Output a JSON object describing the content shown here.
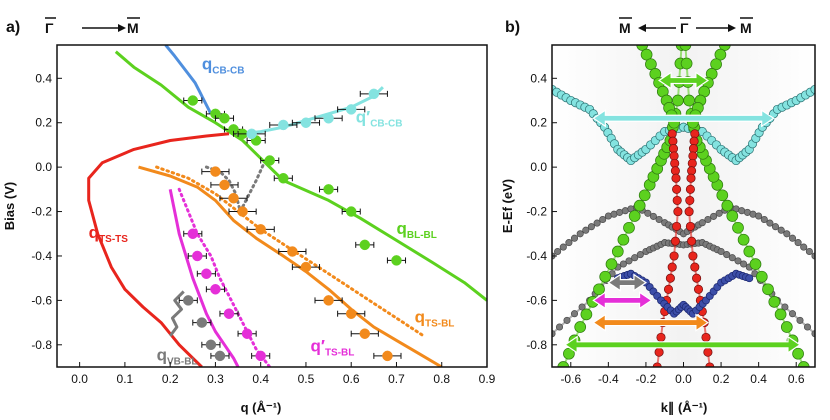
{
  "colors": {
    "green": "#5cd11f",
    "red": "#e8251d",
    "orange": "#f28a1c",
    "magenta": "#e52fd8",
    "blue": "#4f8fde",
    "cyan": "#84e3e0",
    "gray": "#7a7a7a",
    "navy": "#3c4ea8",
    "dkred": "#9e2a2a"
  },
  "chart_data": [
    {
      "panel_label": "a)",
      "type": "scatter",
      "header": {
        "from": "Γ",
        "to": "M"
      },
      "xlabel": "q (Å⁻¹)",
      "ylabel": "Bias (V)",
      "xlim": [
        -0.05,
        0.9
      ],
      "ylim": [
        -0.9,
        0.55
      ],
      "xticks": [
        "0.0",
        "0.1",
        "0.2",
        "0.3",
        "0.4",
        "0.5",
        "0.6",
        "0.7",
        "0.8",
        "0.9"
      ],
      "yticks": [
        "0.4",
        "0.2",
        "0.0",
        "-0.2",
        "-0.4",
        "-0.6",
        "-0.8"
      ],
      "curves": [
        {
          "name": "q_CB-CB",
          "label": "q",
          "sub": "CB-CB",
          "color": "blue",
          "label_x": 0.27,
          "label_y": 0.44,
          "x": [
            0.19,
            0.21,
            0.225,
            0.24,
            0.255,
            0.265,
            0.275,
            0.29
          ],
          "y": [
            0.55,
            0.5,
            0.46,
            0.42,
            0.38,
            0.34,
            0.3,
            0.24
          ]
        },
        {
          "name": "q'_CB-CB",
          "label": "q′",
          "sub": "CB-CB",
          "color": "cyan",
          "label_x": 0.61,
          "label_y": 0.2,
          "x": [
            0.36,
            0.4,
            0.45,
            0.5,
            0.55,
            0.6,
            0.65,
            0.67
          ],
          "y": [
            0.15,
            0.16,
            0.18,
            0.21,
            0.24,
            0.27,
            0.32,
            0.36
          ]
        },
        {
          "name": "q_BL-BL",
          "label": "q",
          "sub": "BL-BL",
          "color": "green",
          "label_x": 0.7,
          "label_y": -0.3,
          "x": [
            0.08,
            0.12,
            0.18,
            0.24,
            0.3,
            0.36,
            0.45,
            0.55,
            0.62,
            0.7,
            0.78,
            0.85,
            0.9
          ],
          "y": [
            0.52,
            0.45,
            0.37,
            0.27,
            0.2,
            0.12,
            -0.06,
            -0.15,
            -0.23,
            -0.33,
            -0.43,
            -0.52,
            -0.6
          ]
        },
        {
          "name": "q_TS-TS",
          "label": "q",
          "sub": "TS-TS",
          "color": "red",
          "label_x": 0.02,
          "label_y": -0.32,
          "x": [
            0.33,
            0.28,
            0.2,
            0.12,
            0.05,
            0.02,
            0.02,
            0.04,
            0.07,
            0.1,
            0.14,
            0.18,
            0.22,
            0.27
          ],
          "y": [
            0.15,
            0.14,
            0.12,
            0.08,
            0.02,
            -0.05,
            -0.15,
            -0.3,
            -0.45,
            -0.55,
            -0.63,
            -0.7,
            -0.8,
            -0.9
          ]
        },
        {
          "name": "q_TS-BL",
          "label": "q",
          "sub": "TS-BL",
          "color": "orange",
          "label_x": 0.74,
          "label_y": -0.7,
          "x": [
            0.13,
            0.2,
            0.26,
            0.3,
            0.34,
            0.39,
            0.45,
            0.5,
            0.55,
            0.6,
            0.65,
            0.7,
            0.75,
            0.8
          ],
          "y": [
            0.0,
            -0.04,
            -0.09,
            -0.15,
            -0.24,
            -0.32,
            -0.4,
            -0.47,
            -0.55,
            -0.64,
            -0.72,
            -0.78,
            -0.84,
            -0.9
          ]
        },
        {
          "name": "q'_TS-BL",
          "label": "q′",
          "sub": "TS-BL",
          "color": "magenta",
          "label_x": 0.51,
          "label_y": -0.83,
          "x": [
            0.2,
            0.21,
            0.22,
            0.235,
            0.25,
            0.265,
            0.28,
            0.3,
            0.32,
            0.34,
            0.35
          ],
          "y": [
            -0.1,
            -0.2,
            -0.3,
            -0.4,
            -0.5,
            -0.58,
            -0.66,
            -0.74,
            -0.8,
            -0.86,
            -0.9
          ]
        },
        {
          "name": "q_VB-BL",
          "label": "q",
          "sub": "VB-BL",
          "color": "gray",
          "label_x": 0.17,
          "label_y": -0.87,
          "x": [
            0.23,
            0.21,
            0.225,
            0.205,
            0.215,
            0.2
          ],
          "y": [
            -0.56,
            -0.6,
            -0.64,
            -0.68,
            -0.72,
            -0.76
          ]
        }
      ],
      "dotted_curves": [
        {
          "color": "orange",
          "x": [
            0.17,
            0.24,
            0.3,
            0.35,
            0.4,
            0.46,
            0.52,
            0.58,
            0.64,
            0.7,
            0.76
          ],
          "y": [
            0.0,
            -0.05,
            -0.12,
            -0.2,
            -0.28,
            -0.36,
            -0.44,
            -0.52,
            -0.6,
            -0.68,
            -0.76
          ]
        },
        {
          "color": "magenta",
          "x": [
            0.22,
            0.24,
            0.26,
            0.29,
            0.31,
            0.33,
            0.35,
            0.37,
            0.39,
            0.42
          ],
          "y": [
            -0.1,
            -0.2,
            -0.3,
            -0.4,
            -0.5,
            -0.58,
            -0.66,
            -0.74,
            -0.82,
            -0.9
          ]
        },
        {
          "color": "gray",
          "x": [
            0.28,
            0.31,
            0.33,
            0.345,
            0.355,
            0.37,
            0.39,
            0.41
          ],
          "y": [
            0.0,
            -0.02,
            -0.06,
            -0.12,
            -0.2,
            -0.14,
            -0.06,
            0.03
          ]
        }
      ],
      "points": [
        {
          "color": "green",
          "x": 0.25,
          "y": 0.3,
          "xerr": 0.02,
          "yerr": 0.02
        },
        {
          "color": "green",
          "x": 0.3,
          "y": 0.24,
          "xerr": 0.02,
          "yerr": 0.02
        },
        {
          "color": "green",
          "x": 0.32,
          "y": 0.22,
          "xerr": 0.02,
          "yerr": 0.02
        },
        {
          "color": "green",
          "x": 0.34,
          "y": 0.17,
          "xerr": 0.02,
          "yerr": 0.02
        },
        {
          "color": "green",
          "x": 0.36,
          "y": 0.15,
          "xerr": 0.02,
          "yerr": 0.02
        },
        {
          "color": "green",
          "x": 0.39,
          "y": 0.12,
          "xerr": 0.02,
          "yerr": 0.02
        },
        {
          "color": "green",
          "x": 0.42,
          "y": 0.03,
          "xerr": 0.02,
          "yerr": 0.02
        },
        {
          "color": "green",
          "x": 0.45,
          "y": -0.05,
          "xerr": 0.02,
          "yerr": 0.02
        },
        {
          "color": "green",
          "x": 0.55,
          "y": -0.1,
          "xerr": 0.02,
          "yerr": 0.02
        },
        {
          "color": "green",
          "x": 0.6,
          "y": -0.2,
          "xerr": 0.02,
          "yerr": 0.02
        },
        {
          "color": "green",
          "x": 0.63,
          "y": -0.35,
          "xerr": 0.02,
          "yerr": 0.02
        },
        {
          "color": "green",
          "x": 0.7,
          "y": -0.42,
          "xerr": 0.02,
          "yerr": 0.02
        },
        {
          "color": "cyan",
          "x": 0.38,
          "y": 0.15,
          "xerr": 0.03,
          "yerr": 0.02
        },
        {
          "color": "cyan",
          "x": 0.45,
          "y": 0.19,
          "xerr": 0.03,
          "yerr": 0.02
        },
        {
          "color": "cyan",
          "x": 0.5,
          "y": 0.2,
          "xerr": 0.03,
          "yerr": 0.02
        },
        {
          "color": "cyan",
          "x": 0.55,
          "y": 0.22,
          "xerr": 0.03,
          "yerr": 0.02
        },
        {
          "color": "cyan",
          "x": 0.6,
          "y": 0.26,
          "xerr": 0.03,
          "yerr": 0.02
        },
        {
          "color": "cyan",
          "x": 0.65,
          "y": 0.33,
          "xerr": 0.03,
          "yerr": 0.02
        },
        {
          "color": "orange",
          "x": 0.3,
          "y": -0.02,
          "xerr": 0.03,
          "yerr": 0.02
        },
        {
          "color": "orange",
          "x": 0.32,
          "y": -0.08,
          "xerr": 0.03,
          "yerr": 0.02
        },
        {
          "color": "orange",
          "x": 0.34,
          "y": -0.14,
          "xerr": 0.03,
          "yerr": 0.02
        },
        {
          "color": "orange",
          "x": 0.36,
          "y": -0.2,
          "xerr": 0.03,
          "yerr": 0.02
        },
        {
          "color": "orange",
          "x": 0.4,
          "y": -0.28,
          "xerr": 0.03,
          "yerr": 0.02
        },
        {
          "color": "orange",
          "x": 0.47,
          "y": -0.38,
          "xerr": 0.03,
          "yerr": 0.02
        },
        {
          "color": "orange",
          "x": 0.5,
          "y": -0.45,
          "xerr": 0.03,
          "yerr": 0.02
        },
        {
          "color": "orange",
          "x": 0.55,
          "y": -0.6,
          "xerr": 0.03,
          "yerr": 0.02
        },
        {
          "color": "orange",
          "x": 0.6,
          "y": -0.66,
          "xerr": 0.03,
          "yerr": 0.02
        },
        {
          "color": "orange",
          "x": 0.63,
          "y": -0.75,
          "xerr": 0.03,
          "yerr": 0.02
        },
        {
          "color": "orange",
          "x": 0.68,
          "y": -0.85,
          "xerr": 0.03,
          "yerr": 0.02
        },
        {
          "color": "magenta",
          "x": 0.25,
          "y": -0.3,
          "xerr": 0.02,
          "yerr": 0.02
        },
        {
          "color": "magenta",
          "x": 0.26,
          "y": -0.4,
          "xerr": 0.02,
          "yerr": 0.02
        },
        {
          "color": "magenta",
          "x": 0.28,
          "y": -0.48,
          "xerr": 0.02,
          "yerr": 0.02
        },
        {
          "color": "magenta",
          "x": 0.3,
          "y": -0.55,
          "xerr": 0.02,
          "yerr": 0.02
        },
        {
          "color": "magenta",
          "x": 0.33,
          "y": -0.66,
          "xerr": 0.02,
          "yerr": 0.02
        },
        {
          "color": "magenta",
          "x": 0.37,
          "y": -0.75,
          "xerr": 0.02,
          "yerr": 0.02
        },
        {
          "color": "magenta",
          "x": 0.4,
          "y": -0.85,
          "xerr": 0.02,
          "yerr": 0.02
        },
        {
          "color": "gray",
          "x": 0.24,
          "y": -0.6,
          "xerr": 0.02,
          "yerr": 0.02
        },
        {
          "color": "gray",
          "x": 0.27,
          "y": -0.7,
          "xerr": 0.02,
          "yerr": 0.02
        },
        {
          "color": "gray",
          "x": 0.29,
          "y": -0.8,
          "xerr": 0.02,
          "yerr": 0.02
        },
        {
          "color": "gray",
          "x": 0.31,
          "y": -0.85,
          "xerr": 0.02,
          "yerr": 0.02
        }
      ]
    },
    {
      "panel_label": "b)",
      "type": "scatter",
      "header": {
        "left": "M",
        "center": "Γ",
        "right": "M"
      },
      "xlabel": "k∥ (Å⁻¹)",
      "ylabel": "E-Ef (eV)",
      "xlim": [
        -0.7,
        0.7
      ],
      "ylim": [
        -0.9,
        0.55
      ],
      "xticks": [
        "-0.6",
        "-0.4",
        "-0.2",
        "0.0",
        "0.2",
        "0.4",
        "0.6"
      ],
      "yticks": [
        "0.4",
        "0.2",
        "0.0",
        "-0.2",
        "-0.4",
        "-0.6",
        "-0.8"
      ],
      "bands": [
        {
          "name": "gray-band-inner",
          "color": "gray",
          "x": [
            -0.7,
            -0.5,
            -0.35,
            -0.2,
            -0.1,
            0.0,
            0.1,
            0.2,
            0.35,
            0.5,
            0.7
          ],
          "y": [
            -0.75,
            -0.6,
            -0.45,
            -0.38,
            -0.34,
            -0.35,
            -0.34,
            -0.38,
            -0.45,
            -0.6,
            -0.75
          ]
        },
        {
          "name": "gray-band-outer",
          "color": "gray",
          "x": [
            -0.7,
            -0.55,
            -0.4,
            -0.25,
            -0.1,
            0.0,
            0.1,
            0.25,
            0.4,
            0.55,
            0.7
          ],
          "y": [
            -0.4,
            -0.3,
            -0.22,
            -0.18,
            -0.25,
            -0.3,
            -0.25,
            -0.18,
            -0.22,
            -0.3,
            -0.4
          ]
        },
        {
          "name": "cyan-band",
          "color": "cyan",
          "x": [
            -0.7,
            -0.6,
            -0.5,
            -0.42,
            -0.35,
            -0.28,
            -0.2,
            -0.1,
            0.0,
            0.1,
            0.2,
            0.28,
            0.35,
            0.42,
            0.5,
            0.6,
            0.7
          ],
          "y": [
            0.35,
            0.3,
            0.26,
            0.18,
            0.08,
            0.03,
            0.08,
            0.16,
            0.18,
            0.16,
            0.08,
            0.03,
            0.08,
            0.18,
            0.26,
            0.3,
            0.35
          ]
        },
        {
          "name": "green-cone-left",
          "color": "green",
          "x": [
            -0.64,
            -0.55,
            -0.45,
            -0.35,
            -0.26,
            -0.18,
            -0.12,
            -0.07,
            -0.03,
            -0.01
          ],
          "y": [
            -0.9,
            -0.72,
            -0.55,
            -0.38,
            -0.22,
            -0.08,
            0.03,
            0.12,
            0.3,
            0.55
          ]
        },
        {
          "name": "green-cone-right",
          "color": "green",
          "x": [
            0.64,
            0.55,
            0.45,
            0.35,
            0.26,
            0.18,
            0.12,
            0.07,
            0.03,
            0.01
          ],
          "y": [
            -0.9,
            -0.72,
            -0.55,
            -0.38,
            -0.22,
            -0.08,
            0.03,
            0.12,
            0.3,
            0.55
          ]
        },
        {
          "name": "green-upper-left",
          "color": "green",
          "x": [
            -0.22,
            -0.15,
            -0.09,
            -0.05
          ],
          "y": [
            0.55,
            0.42,
            0.3,
            0.2
          ]
        },
        {
          "name": "green-upper-right",
          "color": "green",
          "x": [
            0.22,
            0.15,
            0.09,
            0.05
          ],
          "y": [
            0.55,
            0.42,
            0.3,
            0.2
          ]
        },
        {
          "name": "red-band-left",
          "color": "red",
          "x": [
            -0.06,
            -0.05,
            -0.04,
            -0.03,
            -0.05,
            -0.08,
            -0.11,
            -0.14
          ],
          "y": [
            0.15,
            0.05,
            -0.05,
            -0.2,
            -0.4,
            -0.55,
            -0.7,
            -0.9
          ]
        },
        {
          "name": "red-band-right",
          "color": "red",
          "x": [
            0.06,
            0.05,
            0.04,
            0.03,
            0.05,
            0.08,
            0.11,
            0.14
          ],
          "y": [
            0.15,
            0.05,
            -0.05,
            -0.2,
            -0.4,
            -0.55,
            -0.7,
            -0.9
          ]
        },
        {
          "name": "navy-band",
          "color": "navy",
          "x": [
            -0.35,
            -0.28,
            -0.2,
            -0.12,
            -0.05,
            0.0,
            0.05,
            0.12,
            0.2,
            0.28,
            0.35
          ],
          "y": [
            -0.5,
            -0.48,
            -0.52,
            -0.6,
            -0.66,
            -0.62,
            -0.66,
            -0.6,
            -0.52,
            -0.48,
            -0.5
          ]
        }
      ],
      "arrows": [
        {
          "name": "green-arrow-top",
          "color": "green",
          "x1": -0.13,
          "x2": 0.13,
          "y": 0.39
        },
        {
          "name": "cyan-arrow",
          "color": "cyan",
          "x1": -0.48,
          "x2": 0.48,
          "y": 0.22
        },
        {
          "name": "gray-arrow",
          "color": "gray",
          "x1": -0.4,
          "x2": -0.2,
          "y": -0.52
        },
        {
          "name": "magenta-arrow",
          "color": "magenta",
          "x1": -0.48,
          "x2": -0.17,
          "y": -0.6
        },
        {
          "name": "orange-arrow",
          "color": "orange",
          "x1": -0.48,
          "x2": 0.13,
          "y": -0.7
        },
        {
          "name": "green-arrow-bottom",
          "color": "green",
          "x1": -0.63,
          "x2": 0.62,
          "y": -0.8
        }
      ]
    }
  ]
}
